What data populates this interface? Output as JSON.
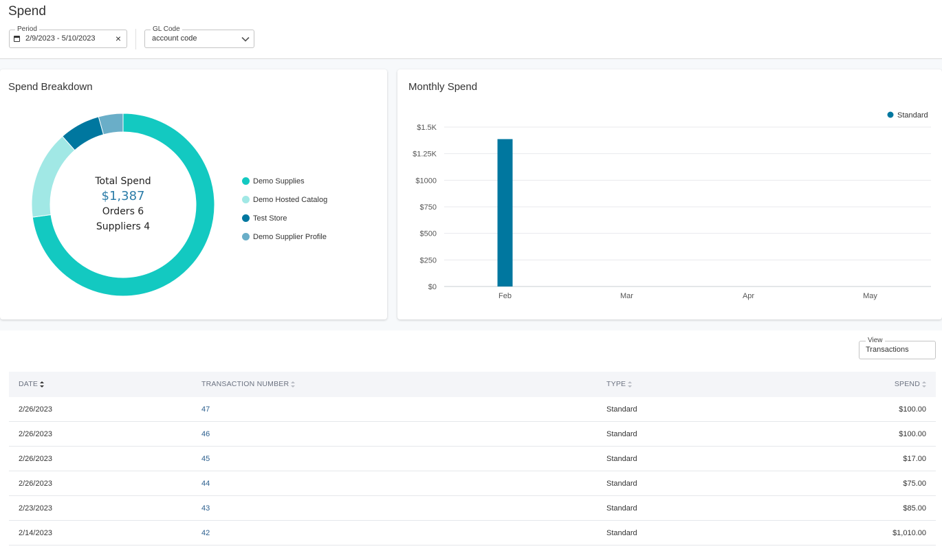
{
  "page": {
    "title": "Spend"
  },
  "filters": {
    "period": {
      "label": "Period",
      "value": "2/9/2023 - 5/10/2023"
    },
    "gl_code": {
      "label": "GL Code",
      "value": "account code"
    }
  },
  "breakdown": {
    "title": "Spend Breakdown",
    "total_label": "Total Spend",
    "total_value": "$1,387",
    "orders": "Orders 6",
    "suppliers": "Suppliers 4",
    "legend": [
      {
        "label": "Demo Supplies",
        "color": "#13c9c1"
      },
      {
        "label": "Demo Hosted Catalog",
        "color": "#a1e8e5"
      },
      {
        "label": "Test Store",
        "color": "#00779f"
      },
      {
        "label": "Demo Supplier Profile",
        "color": "#6aaec8"
      }
    ]
  },
  "monthly": {
    "title": "Monthly Spend",
    "legend_label": "Standard"
  },
  "chart_data": [
    {
      "type": "pie",
      "title": "Spend Breakdown",
      "categories": [
        "Demo Supplies",
        "Demo Hosted Catalog",
        "Test Store",
        "Demo Supplier Profile"
      ],
      "values": [
        1010,
        217,
        100,
        60
      ],
      "colors": [
        "#13c9c1",
        "#a1e8e5",
        "#00779f",
        "#6aaec8"
      ],
      "legend": "right"
    },
    {
      "type": "bar",
      "title": "Monthly Spend",
      "categories": [
        "Feb",
        "Mar",
        "Apr",
        "May"
      ],
      "series": [
        {
          "name": "Standard",
          "values": [
            1387,
            0,
            0,
            0
          ],
          "color": "#00779f"
        }
      ],
      "ylim": [
        0,
        1500
      ],
      "yticks": [
        0,
        250,
        500,
        750,
        1000,
        1250,
        1500
      ],
      "ytick_labels": [
        "$0",
        "$250",
        "$500",
        "$750",
        "$1000",
        "$1.25K",
        "$1.5K"
      ],
      "grid": true,
      "legend": "top-right"
    }
  ],
  "view": {
    "label": "View",
    "value": "Transactions"
  },
  "table": {
    "headers": {
      "date": "DATE",
      "number": "TRANSACTION NUMBER",
      "type": "TYPE",
      "spend": "SPEND"
    },
    "rows": [
      {
        "date": "2/26/2023",
        "number": "47",
        "type": "Standard",
        "spend": "$100.00"
      },
      {
        "date": "2/26/2023",
        "number": "46",
        "type": "Standard",
        "spend": "$100.00"
      },
      {
        "date": "2/26/2023",
        "number": "45",
        "type": "Standard",
        "spend": "$17.00"
      },
      {
        "date": "2/26/2023",
        "number": "44",
        "type": "Standard",
        "spend": "$75.00"
      },
      {
        "date": "2/23/2023",
        "number": "43",
        "type": "Standard",
        "spend": "$85.00"
      },
      {
        "date": "2/14/2023",
        "number": "42",
        "type": "Standard",
        "spend": "$1,010.00"
      }
    ]
  }
}
